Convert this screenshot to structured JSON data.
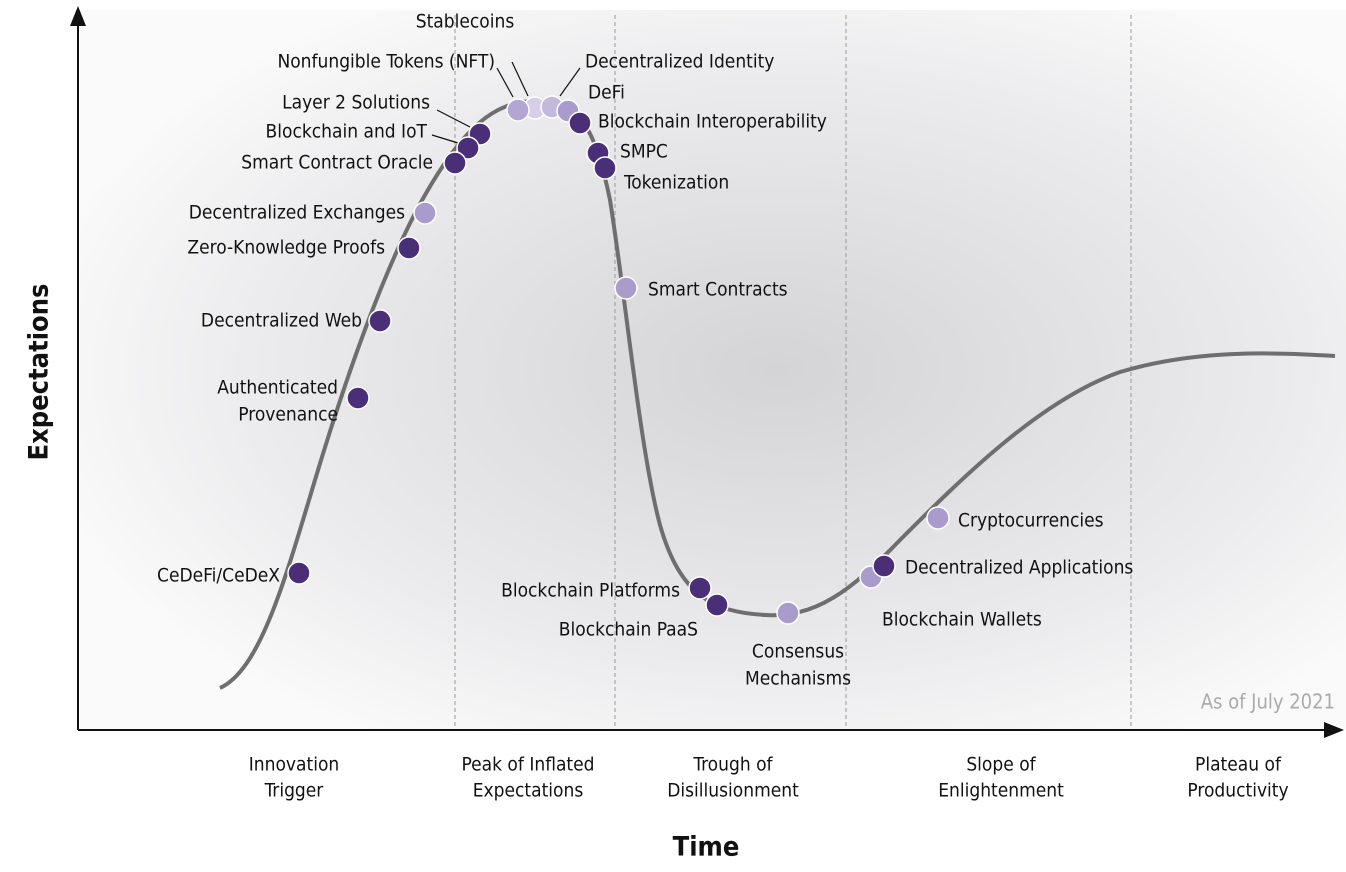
{
  "axes": {
    "y_label": "Expectations",
    "x_label": "Time"
  },
  "note": "As of July 2021",
  "phases": [
    {
      "lines": [
        "Innovation",
        "Trigger"
      ]
    },
    {
      "lines": [
        "Peak of Inflated",
        "Expectations"
      ]
    },
    {
      "lines": [
        "Trough of",
        "Disillusionment"
      ]
    },
    {
      "lines": [
        "Slope of",
        "Enlightenment"
      ]
    },
    {
      "lines": [
        "Plateau of",
        "Productivity"
      ]
    }
  ],
  "nodes": [
    {
      "lines": [
        "Stablecoins"
      ],
      "color": "#d6cfe6"
    },
    {
      "lines": [
        "Nonfungible Tokens (NFT)"
      ],
      "color": "#b3a6d3"
    },
    {
      "lines": [
        "Decentralized Identity"
      ],
      "color": "#c3b9dd"
    },
    {
      "lines": [
        "DeFi"
      ],
      "color": "#a99ccd"
    },
    {
      "lines": [
        "Blockchain Interoperability"
      ],
      "color": "#4a2f78"
    },
    {
      "lines": [
        "Layer 2 Solutions"
      ],
      "color": "#4a2f78"
    },
    {
      "lines": [
        "Blockchain and IoT"
      ],
      "color": "#4a2f78"
    },
    {
      "lines": [
        "Smart Contract Oracle"
      ],
      "color": "#4a2f78"
    },
    {
      "lines": [
        "SMPC"
      ],
      "color": "#4a2f78"
    },
    {
      "lines": [
        "Tokenization"
      ],
      "color": "#4a2f78"
    },
    {
      "lines": [
        "Decentralized Exchanges"
      ],
      "color": "#a99ccd"
    },
    {
      "lines": [
        "Zero-Knowledge Proofs"
      ],
      "color": "#4a2f78"
    },
    {
      "lines": [
        "Decentralized Web"
      ],
      "color": "#4a2f78"
    },
    {
      "lines": [
        "Authenticated",
        "Provenance"
      ],
      "color": "#4a2f78"
    },
    {
      "lines": [
        "Smart Contracts"
      ],
      "color": "#a99ccd"
    },
    {
      "lines": [
        "CeDeFi/CeDeX"
      ],
      "color": "#4a2f78"
    },
    {
      "lines": [
        "Blockchain Platforms"
      ],
      "color": "#4a2f78"
    },
    {
      "lines": [
        "Blockchain PaaS"
      ],
      "color": "#4a2f78"
    },
    {
      "lines": [
        "Consensus",
        "Mechanisms"
      ],
      "color": "#a99ccd"
    },
    {
      "lines": [
        "Cryptocurrencies"
      ],
      "color": "#a99ccd"
    },
    {
      "lines": [
        "Decentralized Applications"
      ],
      "color": "#4a2f78"
    },
    {
      "lines": [
        "Blockchain Wallets"
      ],
      "color": "#a99ccd"
    }
  ]
}
